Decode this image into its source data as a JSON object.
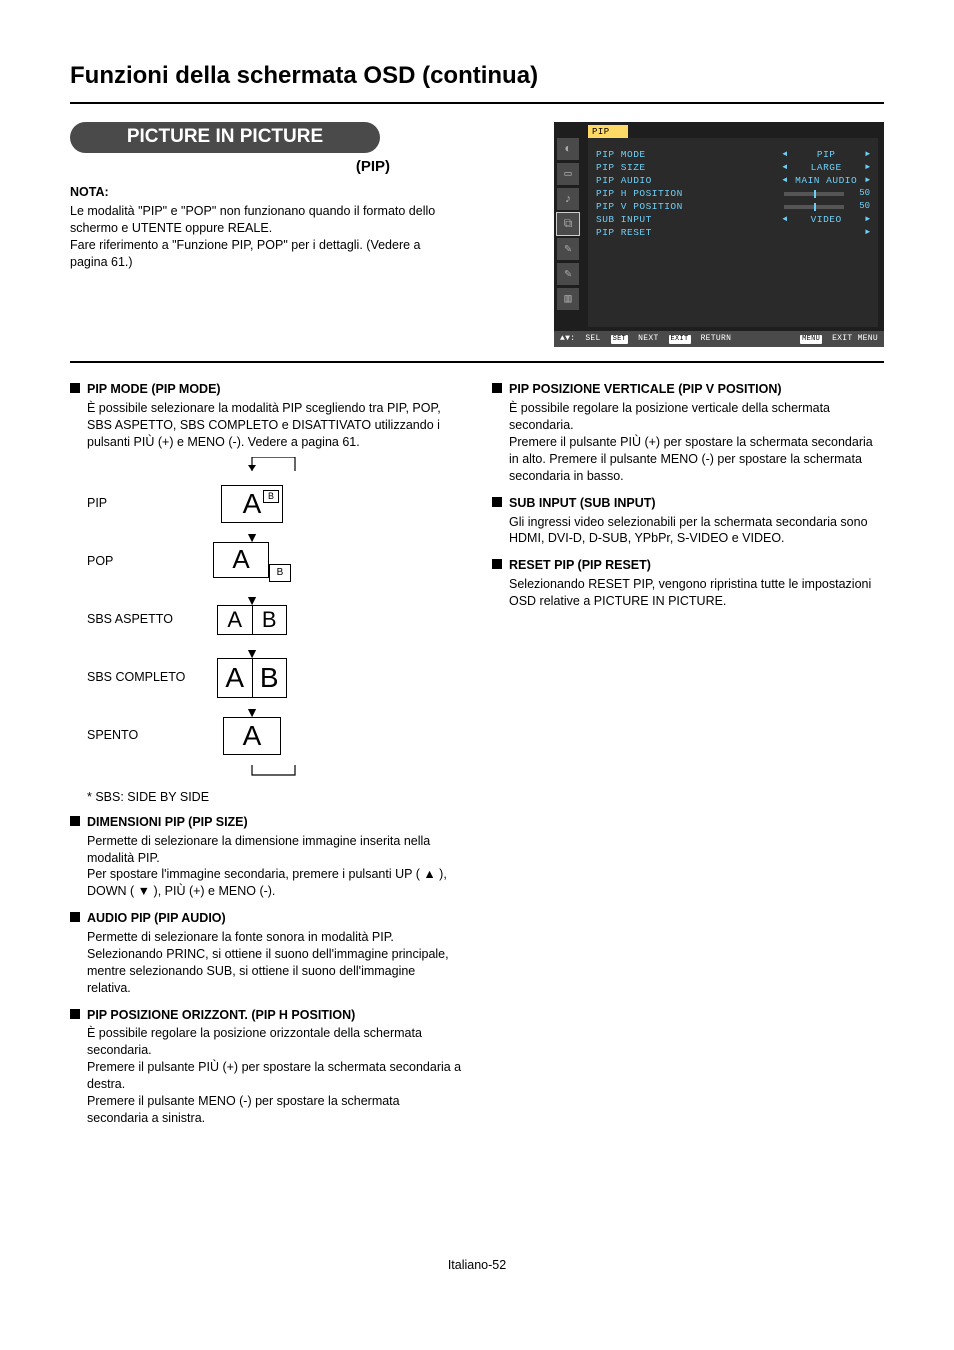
{
  "page": {
    "title": "Funzioni della schermata OSD (continua)",
    "footer": "Italiano-52"
  },
  "header": {
    "pill": "PICTURE IN PICTURE",
    "pill_sub": "(PIP)",
    "nota_label": "NOTA:",
    "nota_body": "Le modalità \"PIP\" e \"POP\" non funzionano quando il formato dello schermo e UTENTE oppure REALE.\nFare riferimento a \"Funzione PIP, POP\" per i dettagli. (Vedere a pagina 61.)"
  },
  "osd": {
    "title": "PIP",
    "rows": [
      {
        "label": "PIP MODE",
        "type": "sel",
        "value": "PIP"
      },
      {
        "label": "PIP SIZE",
        "type": "sel",
        "value": "LARGE"
      },
      {
        "label": "PIP AUDIO",
        "type": "sel",
        "value": "MAIN AUDIO"
      },
      {
        "label": "PIP H POSITION",
        "type": "slider",
        "num": "50"
      },
      {
        "label": "PIP V POSITION",
        "type": "slider",
        "num": "50"
      },
      {
        "label": "SUB INPUT",
        "type": "sel",
        "value": "VIDEO"
      },
      {
        "label": "PIP RESET",
        "type": "arrow"
      }
    ],
    "footer": {
      "sel": "SEL",
      "next": "NEXT",
      "return": "RETURN",
      "exit": "EXIT MENU",
      "k_set": "SET",
      "k_exit": "EXIT",
      "k_menu": "MENU"
    },
    "colors": {
      "bg": "#1e1e1e",
      "panel": "#2a2a2a",
      "text": "#6ecff6",
      "bar": "#ffd966"
    }
  },
  "modes": {
    "rows": [
      {
        "label": "PIP"
      },
      {
        "label": "POP"
      },
      {
        "label": "SBS ASPETTO"
      },
      {
        "label": "SBS COMPLETO"
      },
      {
        "label": "SPENTO"
      }
    ],
    "footnote": "* SBS: SIDE BY SIDE"
  },
  "left_items": [
    {
      "head": "PIP MODE (PIP MODE)",
      "body": "È possibile selezionare la modalità PIP scegliendo tra PIP, POP, SBS ASPETTO, SBS COMPLETO e DISATTIVATO utilizzando i pulsanti PIÙ (+) e MENO (-). Vedere a pagina 61."
    },
    {
      "head": "DIMENSIONI PIP (PIP SIZE)",
      "body": "Permette di selezionare la dimensione immagine inserita nella modalità PIP.\nPer spostare l'immagine secondaria, premere i pulsanti UP ( ▲ ), DOWN ( ▼ ), PIÙ (+) e MENO (-)."
    },
    {
      "head": "AUDIO PIP (PIP AUDIO)",
      "body": "Permette di selezionare la fonte sonora in modalità PIP. Selezionando PRINC, si ottiene il suono dell'immagine principale, mentre selezionando SUB, si ottiene il suono dell'immagine relativa."
    },
    {
      "head": "PIP POSIZIONE ORIZZONT. (PIP H POSITION)",
      "body": "È possibile regolare la posizione orizzontale della schermata secondaria.\nPremere il pulsante PIÙ (+) per spostare la schermata secondaria a destra.\nPremere il pulsante MENO (-) per spostare la schermata secondaria a sinistra."
    }
  ],
  "right_items": [
    {
      "head": "PIP POSIZIONE VERTICALE (PIP V POSITION)",
      "body": "È possibile regolare la posizione verticale della schermata secondaria.\nPremere il pulsante PIÙ (+) per spostare la schermata secondaria in alto. Premere il pulsante MENO (-) per spostare la schermata secondaria in basso."
    },
    {
      "head": "SUB INPUT (SUB INPUT)",
      "body": "Gli ingressi video selezionabili per la schermata secondaria sono HDMI, DVI-D, D-SUB, YPbPr, S-VIDEO e VIDEO."
    },
    {
      "head": "RESET PIP (PIP RESET)",
      "body": "Selezionando RESET PIP, vengono ripristina tutte le impostazioni OSD relative a PICTURE IN PICTURE."
    }
  ]
}
